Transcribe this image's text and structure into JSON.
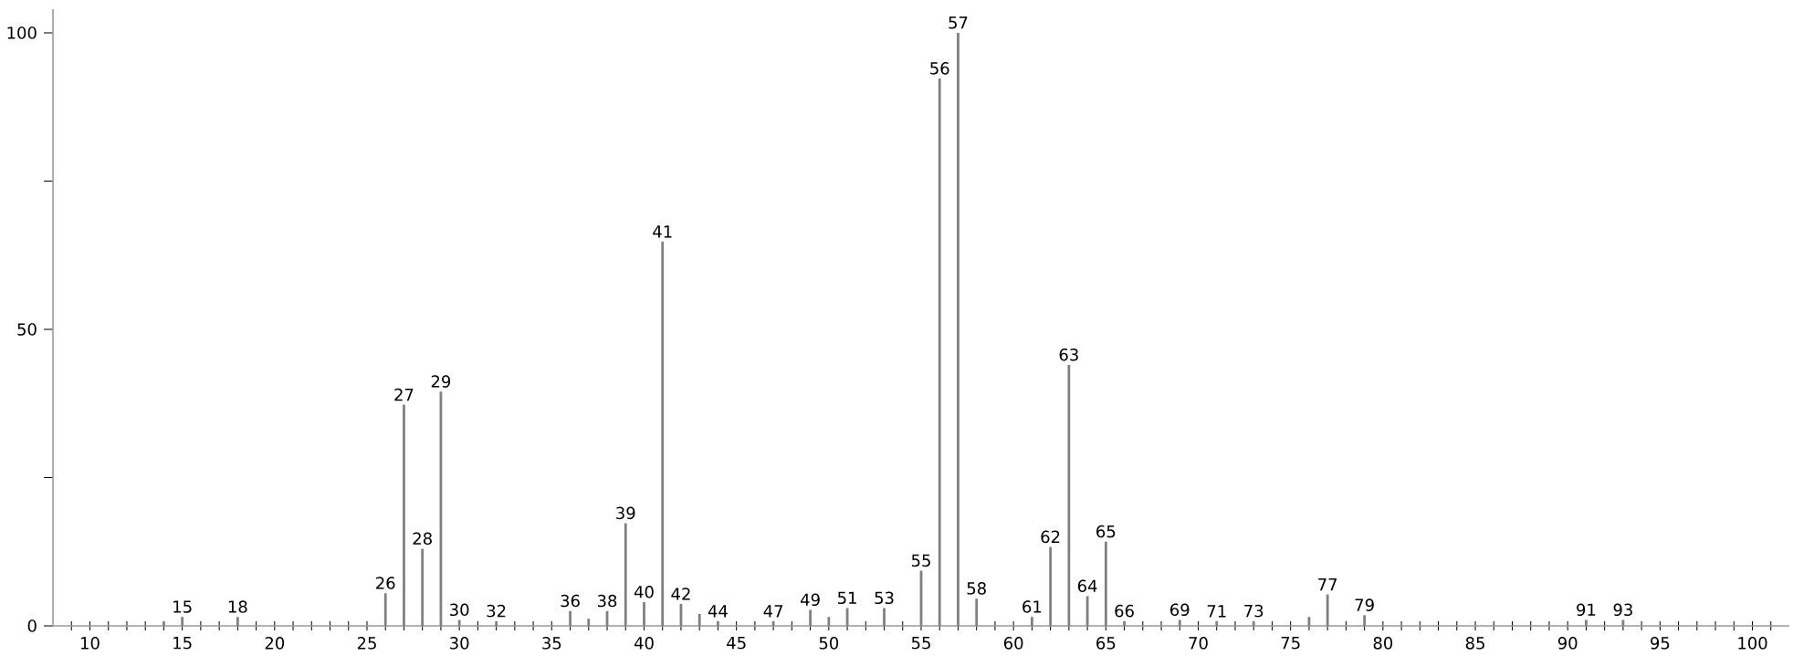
{
  "chart_data": {
    "type": "bar",
    "x": [
      14,
      15,
      18,
      26,
      27,
      28,
      29,
      30,
      32,
      36,
      37,
      38,
      39,
      40,
      41,
      42,
      43,
      44,
      47,
      49,
      50,
      51,
      53,
      55,
      56,
      57,
      58,
      61,
      62,
      63,
      64,
      65,
      66,
      69,
      71,
      73,
      76,
      77,
      79,
      91,
      93
    ],
    "values": [
      0.7,
      1.5,
      1.5,
      5.5,
      37.3,
      13,
      39.5,
      1,
      0.8,
      2.5,
      1.2,
      2.5,
      17.3,
      4,
      64.8,
      3.7,
      2,
      0.8,
      0.8,
      2.7,
      1.5,
      3,
      3,
      9.3,
      92.3,
      100,
      4.6,
      1.5,
      13.3,
      44,
      5,
      14.2,
      0.8,
      1,
      0.8,
      0.8,
      1.5,
      5.3,
      1.8,
      1,
      1
    ],
    "color": "#808080",
    "xlim": [
      8,
      102
    ],
    "ylim": [
      0,
      104
    ],
    "xticks": [
      {
        "value": 9,
        "label": null
      },
      10,
      {
        "value": 11,
        "label": null
      },
      {
        "value": 12,
        "label": null
      },
      {
        "value": 13,
        "label": null
      },
      {
        "value": 14,
        "label": null
      },
      15,
      {
        "value": 16,
        "label": null
      },
      {
        "value": 17,
        "label": null
      },
      {
        "value": 18,
        "label": null
      },
      {
        "value": 19,
        "label": null
      },
      20,
      {
        "value": 21,
        "label": null
      },
      {
        "value": 22,
        "label": null
      },
      {
        "value": 23,
        "label": null
      },
      {
        "value": 24,
        "label": null
      },
      25,
      {
        "value": 26,
        "label": null
      },
      {
        "value": 27,
        "label": null
      },
      {
        "value": 28,
        "label": null
      },
      {
        "value": 29,
        "label": null
      },
      30,
      {
        "value": 31,
        "label": null
      },
      {
        "value": 32,
        "label": null
      },
      {
        "value": 33,
        "label": null
      },
      {
        "value": 34,
        "label": null
      },
      35,
      {
        "value": 36,
        "label": null
      },
      {
        "value": 37,
        "label": null
      },
      {
        "value": 38,
        "label": null
      },
      {
        "value": 39,
        "label": null
      },
      40,
      {
        "value": 41,
        "label": null
      },
      {
        "value": 42,
        "label": null
      },
      {
        "value": 43,
        "label": null
      },
      {
        "value": 44,
        "label": null
      },
      45,
      {
        "value": 46,
        "label": null
      },
      {
        "value": 47,
        "label": null
      },
      {
        "value": 48,
        "label": null
      },
      {
        "value": 49,
        "label": null
      },
      50,
      {
        "value": 51,
        "label": null
      },
      {
        "value": 52,
        "label": null
      },
      {
        "value": 53,
        "label": null
      },
      {
        "value": 54,
        "label": null
      },
      55,
      {
        "value": 56,
        "label": null
      },
      {
        "value": 57,
        "label": null
      },
      {
        "value": 58,
        "label": null
      },
      {
        "value": 59,
        "label": null
      },
      60,
      {
        "value": 61,
        "label": null
      },
      {
        "value": 62,
        "label": null
      },
      {
        "value": 63,
        "label": null
      },
      {
        "value": 64,
        "label": null
      },
      65,
      {
        "value": 66,
        "label": null
      },
      {
        "value": 67,
        "label": null
      },
      {
        "value": 68,
        "label": null
      },
      {
        "value": 69,
        "label": null
      },
      70,
      {
        "value": 71,
        "label": null
      },
      {
        "value": 72,
        "label": null
      },
      {
        "value": 73,
        "label": null
      },
      {
        "value": 74,
        "label": null
      },
      75,
      {
        "value": 76,
        "label": null
      },
      {
        "value": 77,
        "label": null
      },
      {
        "value": 78,
        "label": null
      },
      {
        "value": 79,
        "label": null
      },
      80,
      {
        "value": 81,
        "label": null
      },
      {
        "value": 82,
        "label": null
      },
      {
        "value": 83,
        "label": null
      },
      {
        "value": 84,
        "label": null
      },
      85,
      {
        "value": 86,
        "label": null
      },
      {
        "value": 87,
        "label": null
      },
      {
        "value": 88,
        "label": null
      },
      {
        "value": 89,
        "label": null
      },
      90,
      {
        "value": 91,
        "label": null
      },
      {
        "value": 92,
        "label": null
      },
      {
        "value": 93,
        "label": null
      },
      {
        "value": 94,
        "label": null
      },
      95,
      {
        "value": 96,
        "label": null
      },
      {
        "value": 97,
        "label": null
      },
      {
        "value": 98,
        "label": null
      },
      {
        "value": 99,
        "label": null
      },
      100,
      {
        "value": 101,
        "label": null
      }
    ],
    "yticks": [
      0,
      {
        "value": 25,
        "label": null
      },
      50,
      {
        "value": 75,
        "label": null
      },
      100
    ],
    "annotations": [
      {
        "text": "15",
        "x": 15,
        "y": 1.5
      },
      {
        "text": "18",
        "x": 18,
        "y": 1.5
      },
      {
        "text": "26",
        "x": 26,
        "y": 5.5
      },
      {
        "text": "27",
        "x": 27,
        "y": 37.3
      },
      {
        "text": "28",
        "x": 28,
        "y": 13
      },
      {
        "text": "29",
        "x": 29,
        "y": 39.5
      },
      {
        "text": "30",
        "x": 30,
        "y": 1
      },
      {
        "text": "32",
        "x": 32,
        "y": 0.8
      },
      {
        "text": "36",
        "x": 36,
        "y": 2.5
      },
      {
        "text": "38",
        "x": 38,
        "y": 2.5
      },
      {
        "text": "39",
        "x": 39,
        "y": 17.3
      },
      {
        "text": "40",
        "x": 40,
        "y": 4
      },
      {
        "text": "41",
        "x": 41,
        "y": 64.8
      },
      {
        "text": "42",
        "x": 42,
        "y": 3.7
      },
      {
        "text": "44",
        "x": 44,
        "y": 0.8
      },
      {
        "text": "47",
        "x": 47,
        "y": 0.8
      },
      {
        "text": "49",
        "x": 49,
        "y": 2.7
      },
      {
        "text": "51",
        "x": 51,
        "y": 3
      },
      {
        "text": "53",
        "x": 53,
        "y": 3
      },
      {
        "text": "55",
        "x": 55,
        "y": 9.3
      },
      {
        "text": "56",
        "x": 56,
        "y": 92.3
      },
      {
        "text": "57",
        "x": 57,
        "y": 100
      },
      {
        "text": "58",
        "x": 58,
        "y": 4.6
      },
      {
        "text": "61",
        "x": 61,
        "y": 1.5
      },
      {
        "text": "62",
        "x": 62,
        "y": 13.3
      },
      {
        "text": "63",
        "x": 63,
        "y": 44
      },
      {
        "text": "64",
        "x": 64,
        "y": 5
      },
      {
        "text": "65",
        "x": 65,
        "y": 14.2
      },
      {
        "text": "66",
        "x": 66,
        "y": 0.8
      },
      {
        "text": "69",
        "x": 69,
        "y": 1
      },
      {
        "text": "71",
        "x": 71,
        "y": 0.8
      },
      {
        "text": "73",
        "x": 73,
        "y": 0.8
      },
      {
        "text": "77",
        "x": 77,
        "y": 5.3
      },
      {
        "text": "79",
        "x": 79,
        "y": 1.8
      },
      {
        "text": "91",
        "x": 91,
        "y": 1
      },
      {
        "text": "93",
        "x": 93,
        "y": 1
      }
    ]
  }
}
